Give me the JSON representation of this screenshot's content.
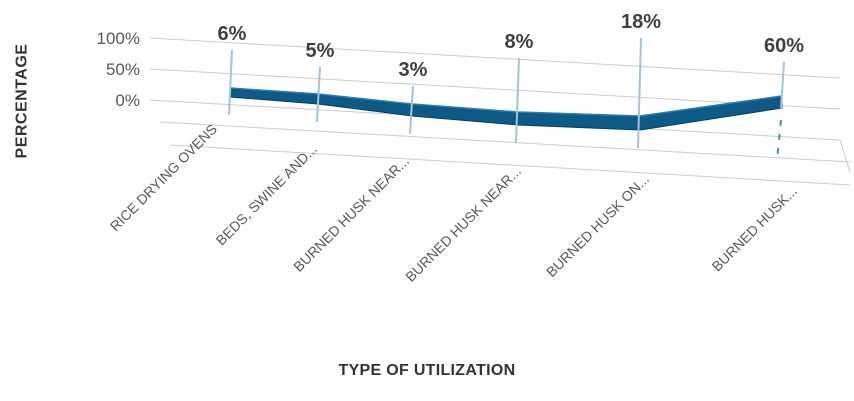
{
  "chart_data": {
    "type": "line",
    "title": "",
    "xlabel": "TYPE OF UTILIZATION",
    "ylabel": "PERCENTAGE",
    "ylim": [
      0,
      100
    ],
    "yticks": [
      "0%",
      "50%",
      "100%"
    ],
    "grid": true,
    "three_d": true,
    "categories": [
      "RICE DRYING OVENS",
      "BEDS, SWINE AND...",
      "BURNED HUSK NEAR...",
      "BURNED HUSK NEAR...",
      "BURNED HUSK ON...",
      "BURNED HUSK..."
    ],
    "values": [
      6,
      5,
      3,
      8,
      18,
      60
    ],
    "value_labels": [
      "6%",
      "5%",
      "3%",
      "8%",
      "18%",
      "60%"
    ],
    "colors": {
      "line": "#0e5a86",
      "line_edge": "#0a3f60",
      "grid": "#cccccc",
      "axis_text": "#595959",
      "title_text": "#333333"
    }
  }
}
